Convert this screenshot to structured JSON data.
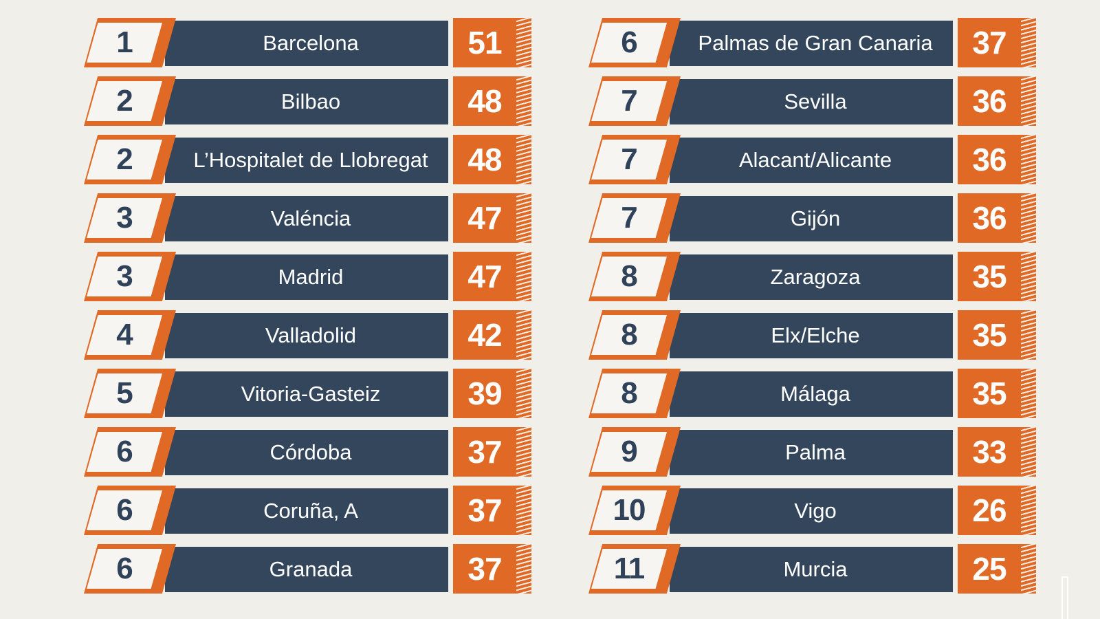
{
  "colors": {
    "background": "#f1efea",
    "accent_orange": "#e06a25",
    "bar_navy": "#33465c",
    "rank_text": "#2f4259",
    "rank_fill": "#f7f5f1"
  },
  "left_column": [
    {
      "rank": "1",
      "city": "Barcelona",
      "score": "51"
    },
    {
      "rank": "2",
      "city": "Bilbao",
      "score": "48"
    },
    {
      "rank": "2",
      "city": "L’Hospitalet de Llobregat",
      "score": "48"
    },
    {
      "rank": "3",
      "city": "Valéncia",
      "score": "47"
    },
    {
      "rank": "3",
      "city": "Madrid",
      "score": "47"
    },
    {
      "rank": "4",
      "city": "Valladolid",
      "score": "42"
    },
    {
      "rank": "5",
      "city": "Vitoria-Gasteiz",
      "score": "39"
    },
    {
      "rank": "6",
      "city": "Córdoba",
      "score": "37"
    },
    {
      "rank": "6",
      "city": "Coruña, A",
      "score": "37"
    },
    {
      "rank": "6",
      "city": "Granada",
      "score": "37"
    }
  ],
  "right_column": [
    {
      "rank": "6",
      "city": "Palmas de Gran Canaria",
      "score": "37"
    },
    {
      "rank": "7",
      "city": "Sevilla",
      "score": "36"
    },
    {
      "rank": "7",
      "city": "Alacant/Alicante",
      "score": "36"
    },
    {
      "rank": "7",
      "city": "Gijón",
      "score": "36"
    },
    {
      "rank": "8",
      "city": "Zaragoza",
      "score": "35"
    },
    {
      "rank": "8",
      "city": "Elx/Elche",
      "score": "35"
    },
    {
      "rank": "8",
      "city": "Málaga",
      "score": "35"
    },
    {
      "rank": "9",
      "city": "Palma",
      "score": "33"
    },
    {
      "rank": "10",
      "city": "Vigo",
      "score": "26"
    },
    {
      "rank": "11",
      "city": "Murcia",
      "score": "25"
    }
  ]
}
